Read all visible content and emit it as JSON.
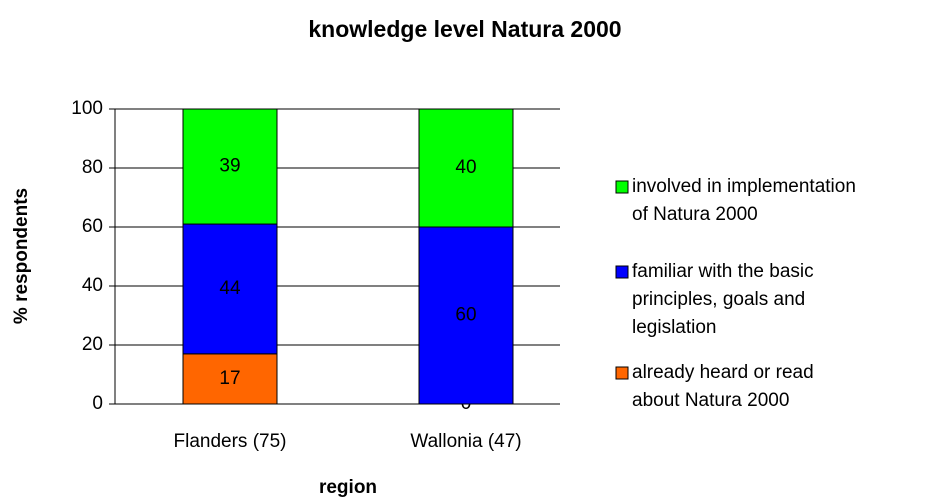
{
  "chart_data": {
    "type": "stacked_bar",
    "title": "knowledge level Natura 2000",
    "x_label": "region",
    "y_label": "% respondents",
    "categories": [
      "Flanders (75)",
      "Wallonia (47)"
    ],
    "series": [
      {
        "name": "already heard or read about Natura 2000",
        "color": "#ff6600",
        "values": [
          17,
          0
        ]
      },
      {
        "name": "familiar with the basic principles, goals and legislation",
        "color": "#0000ff",
        "values": [
          44,
          60
        ]
      },
      {
        "name": "involved in implementation of Natura 2000",
        "color": "#00ff00",
        "values": [
          39,
          40
        ]
      }
    ],
    "ylim": [
      0,
      100
    ],
    "yticks": [
      0,
      20,
      40,
      60,
      80,
      100
    ],
    "grid": true,
    "legend": "right"
  }
}
